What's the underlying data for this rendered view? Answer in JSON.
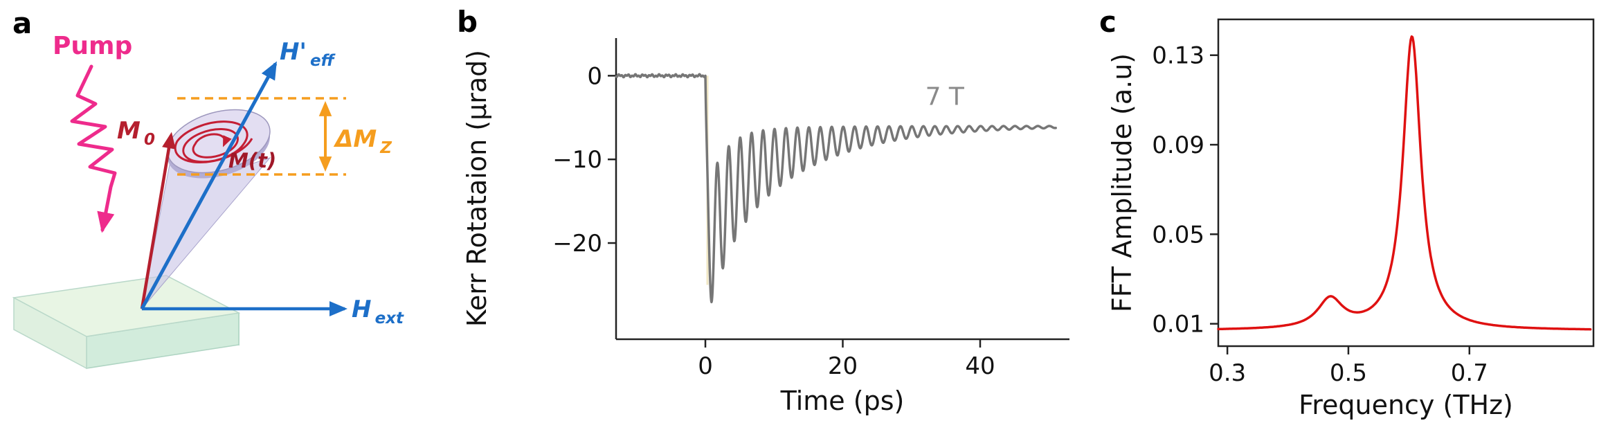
{
  "figure": {
    "background": "#ffffff"
  },
  "panels": {
    "a": "a",
    "b": "b",
    "c": "c"
  },
  "diagram": {
    "pump_label": "Pump",
    "labels": {
      "h_eff_main": "H'",
      "h_eff_sub": "eff",
      "m0_main": "M",
      "m0_sub": "0",
      "mt": "M(t)",
      "delta_mz_main": "ΔM",
      "delta_mz_sub": "Z",
      "h_ext_main": "H",
      "h_ext_sub": "ext"
    },
    "colors": {
      "pump": "#ee2b8c",
      "field_blue": "#1d6fc8",
      "magnetization_red": "#b51f2e",
      "delta_mz_orange": "#f59d1e",
      "sample_top": "#e8f5e4",
      "sample_front": "#d2ecdc",
      "sample_side": "#a8dcc9",
      "cone_fill": "#c9c5e6",
      "disk_fill": "#e3def2"
    }
  },
  "chart_data": [
    {
      "id": "kerr_trace",
      "type": "line",
      "panel": "b",
      "xlabel": "Time (ps)",
      "ylabel": "Kerr Rotataion (µrad)",
      "annotation": "7 T",
      "annotation_xy": [
        32,
        -3.5
      ],
      "annotation_color": "#8a8a8a",
      "xlim": [
        -13,
        53
      ],
      "ylim": [
        -31.5,
        4.5
      ],
      "xticks": [
        0,
        20,
        40
      ],
      "xtick_labels": [
        "0",
        "20",
        "40"
      ],
      "yticks": [
        0,
        -10,
        -20
      ],
      "ytick_labels": [
        "0",
        "−10",
        "−20"
      ],
      "line_color": "#767676",
      "line_width": 3.5,
      "pump_artifact": {
        "color": "#f0e7c4",
        "t": 0.3,
        "y_top": 0,
        "y_bottom": -25,
        "width": 3
      },
      "model": {
        "type": "damped_precession",
        "t_start": -13,
        "t_end": 51,
        "dt": 0.05,
        "offset": 6,
        "a1": 9,
        "tau1": 12,
        "a2": 8,
        "tau2": 2.5,
        "osc_amp": 8.5,
        "osc_tau": 12,
        "freq_THz": 0.6,
        "phase_t0": 0.9,
        "rise_tau": 0.25,
        "noise_amp": 0.18
      },
      "features": {
        "pre_time_zero_level_urad": 0,
        "min_kerr_rotation_urad": -28,
        "time_of_min_ps": 0.9,
        "recovery_level_at_50ps_urad": -6,
        "precession_frequency_THz": 0.6,
        "field_label": "7 T"
      }
    },
    {
      "id": "fft_spectrum",
      "type": "line",
      "panel": "c",
      "xlabel": "Frequency (THz)",
      "ylabel": "FFT Amplitude (a.u)",
      "xlim": [
        0.285,
        0.905
      ],
      "ylim": [
        0,
        0.146
      ],
      "xticks": [
        0.3,
        0.5,
        0.7
      ],
      "xtick_labels": [
        "0.3",
        "0.5",
        "0.7"
      ],
      "yticks": [
        0.01,
        0.05,
        0.09,
        0.13
      ],
      "ytick_labels": [
        "0.01",
        "0.05",
        "0.09",
        "0.13"
      ],
      "line_color": "#df1111",
      "line_width": 3.5,
      "model": {
        "type": "lorentzian_sum",
        "f_start": 0.285,
        "f_end": 0.9,
        "df": 0.0015,
        "base": 0.007,
        "peaks": [
          {
            "center": 0.47,
            "amp": 0.013,
            "gamma": 0.025
          },
          {
            "center": 0.605,
            "amp": 0.131,
            "gamma": 0.018
          }
        ]
      },
      "features": {
        "main_peak_THz": 0.605,
        "main_peak_amplitude_au": 0.138,
        "shoulder_peak_THz": 0.47,
        "shoulder_amplitude_au": 0.02
      }
    }
  ]
}
